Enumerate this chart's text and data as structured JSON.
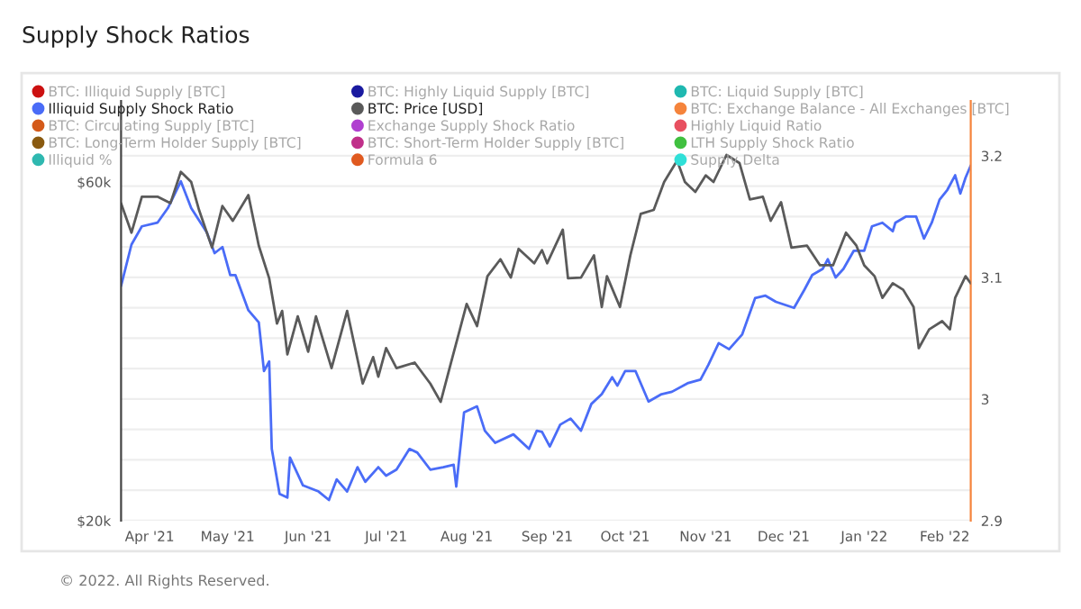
{
  "chart_data": {
    "type": "line",
    "title": "Supply Shock Ratios",
    "annotations": [
      "© 2022. All Rights Reserved."
    ],
    "xlim": [
      "2021-03-21",
      "2022-02-11"
    ],
    "xticks": [
      {
        "value": "2021-04-01",
        "label": "Apr '21"
      },
      {
        "value": "2021-05-01",
        "label": "May '21"
      },
      {
        "value": "2021-06-01",
        "label": "Jun '21"
      },
      {
        "value": "2021-07-01",
        "label": "Jul '21"
      },
      {
        "value": "2021-08-01",
        "label": "Aug '21"
      },
      {
        "value": "2021-09-01",
        "label": "Sep '21"
      },
      {
        "value": "2021-10-01",
        "label": "Oct '21"
      },
      {
        "value": "2021-11-01",
        "label": "Nov '21"
      },
      {
        "value": "2021-12-01",
        "label": "Dec '21"
      },
      {
        "value": "2022-01-01",
        "label": "Jan '22"
      },
      {
        "value": "2022-02-01",
        "label": "Feb '22"
      }
    ],
    "log": "y",
    "ylim": [
      20000,
      78000
    ],
    "yticks": [
      {
        "value": 20000,
        "label": "$20k"
      },
      {
        "value": 60000,
        "label": "$60k"
      }
    ],
    "y2lim": [
      2.9,
      3.245
    ],
    "y2ticks": [
      2.9,
      {
        "value": 2.925,
        "label": null
      },
      {
        "value": 2.95,
        "label": null
      },
      {
        "value": 2.975,
        "label": null
      },
      3,
      {
        "value": 3.025,
        "label": null
      },
      {
        "value": 3.05,
        "label": null
      },
      {
        "value": 3.075,
        "label": null
      },
      3.1,
      {
        "value": 3.125,
        "label": null
      },
      {
        "value": 3.15,
        "label": null
      },
      {
        "value": 3.175,
        "label": null
      },
      3.2
    ],
    "grid": "y2",
    "legend": "top",
    "series": [
      {
        "name": "BTC: Illiquid Supply [BTC]",
        "color": "#cc1111"
      },
      {
        "name": "Illiquid Supply Shock Ratio",
        "color": "#4a6cf7",
        "axis": "y2",
        "x": [
          "2021-03-21",
          "2021-03-25",
          "2021-03-29",
          "2021-04-04",
          "2021-04-08",
          "2021-04-13",
          "2021-04-17",
          "2021-04-23",
          "2021-04-26",
          "2021-04-29",
          "2021-05-02",
          "2021-05-04",
          "2021-05-09",
          "2021-05-13",
          "2021-05-15",
          "2021-05-17",
          "2021-05-18",
          "2021-05-21",
          "2021-05-24",
          "2021-05-25",
          "2021-05-30",
          "2021-06-05",
          "2021-06-09",
          "2021-06-12",
          "2021-06-16",
          "2021-06-20",
          "2021-06-23",
          "2021-06-28",
          "2021-07-01",
          "2021-07-05",
          "2021-07-10",
          "2021-07-13",
          "2021-07-18",
          "2021-07-23",
          "2021-07-27",
          "2021-07-28",
          "2021-07-31",
          "2021-08-05",
          "2021-08-08",
          "2021-08-12",
          "2021-08-19",
          "2021-08-25",
          "2021-08-28",
          "2021-08-30",
          "2021-09-02",
          "2021-09-06",
          "2021-09-10",
          "2021-09-14",
          "2021-09-18",
          "2021-09-22",
          "2021-09-26",
          "2021-09-28",
          "2021-10-01",
          "2021-10-05",
          "2021-10-10",
          "2021-10-15",
          "2021-10-19",
          "2021-10-25",
          "2021-10-30",
          "2021-11-02",
          "2021-11-06",
          "2021-11-10",
          "2021-11-15",
          "2021-11-20",
          "2021-11-24",
          "2021-11-28",
          "2021-12-05",
          "2021-12-09",
          "2021-12-12",
          "2021-12-16",
          "2021-12-18",
          "2021-12-21",
          "2021-12-24",
          "2021-12-28",
          "2022-01-01",
          "2022-01-04",
          "2022-01-08",
          "2022-01-12",
          "2022-01-13",
          "2022-01-17",
          "2022-01-21",
          "2022-01-24",
          "2022-01-27",
          "2022-01-30",
          "2022-02-02",
          "2022-02-05",
          "2022-02-07",
          "2022-02-09",
          "2022-02-11"
        ],
        "values": [
          3.093,
          3.127,
          3.142,
          3.145,
          3.157,
          3.179,
          3.157,
          3.137,
          3.12,
          3.125,
          3.102,
          3.102,
          3.073,
          3.063,
          3.023,
          3.031,
          2.959,
          2.922,
          2.919,
          2.952,
          2.929,
          2.924,
          2.917,
          2.934,
          2.924,
          2.944,
          2.932,
          2.944,
          2.937,
          2.942,
          2.959,
          2.956,
          2.942,
          2.944,
          2.946,
          2.928,
          2.989,
          2.994,
          2.974,
          2.964,
          2.971,
          2.959,
          2.974,
          2.973,
          2.961,
          2.979,
          2.984,
          2.974,
          2.996,
          3.004,
          3.018,
          3.011,
          3.023,
          3.023,
          2.998,
          3.004,
          3.006,
          3.013,
          3.016,
          3.028,
          3.046,
          3.041,
          3.053,
          3.083,
          3.085,
          3.08,
          3.075,
          3.09,
          3.102,
          3.107,
          3.115,
          3.1,
          3.107,
          3.122,
          3.122,
          3.142,
          3.145,
          3.138,
          3.145,
          3.15,
          3.15,
          3.132,
          3.145,
          3.164,
          3.172,
          3.184,
          3.169,
          3.182,
          3.192
        ]
      },
      {
        "name": "BTC: Circulating Supply [BTC]",
        "color": "#d45a1a"
      },
      {
        "name": "BTC: Long-Term Holder Supply [BTC]",
        "color": "#8a5a10"
      },
      {
        "name": "Illiquid %",
        "color": "#2fb8b0"
      },
      {
        "name": "BTC: Highly Liquid Supply [BTC]",
        "color": "#1a1aa0"
      },
      {
        "name": "BTC: Price [USD]",
        "color": "#5a5a5a",
        "x": [
          "2021-03-21",
          "2021-03-25",
          "2021-03-29",
          "2021-04-04",
          "2021-04-09",
          "2021-04-13",
          "2021-04-17",
          "2021-04-20",
          "2021-04-25",
          "2021-04-29",
          "2021-05-03",
          "2021-05-09",
          "2021-05-13",
          "2021-05-17",
          "2021-05-20",
          "2021-05-22",
          "2021-05-24",
          "2021-05-28",
          "2021-06-01",
          "2021-06-04",
          "2021-06-10",
          "2021-06-16",
          "2021-06-22",
          "2021-06-26",
          "2021-06-28",
          "2021-07-01",
          "2021-07-05",
          "2021-07-12",
          "2021-07-18",
          "2021-07-22",
          "2021-07-26",
          "2021-08-01",
          "2021-08-05",
          "2021-08-09",
          "2021-08-14",
          "2021-08-18",
          "2021-08-21",
          "2021-08-27",
          "2021-08-30",
          "2021-09-01",
          "2021-09-07",
          "2021-09-09",
          "2021-09-14",
          "2021-09-19",
          "2021-09-22",
          "2021-09-24",
          "2021-09-29",
          "2021-10-03",
          "2021-10-07",
          "2021-10-12",
          "2021-10-16",
          "2021-10-21",
          "2021-10-24",
          "2021-10-28",
          "2021-11-01",
          "2021-11-04",
          "2021-11-09",
          "2021-11-14",
          "2021-11-18",
          "2021-11-23",
          "2021-11-26",
          "2021-11-30",
          "2021-12-04",
          "2021-12-10",
          "2021-12-15",
          "2021-12-20",
          "2021-12-25",
          "2021-12-29",
          "2022-01-01",
          "2022-01-05",
          "2022-01-08",
          "2022-01-12",
          "2022-01-16",
          "2022-01-20",
          "2022-01-22",
          "2022-01-26",
          "2022-01-31",
          "2022-02-03",
          "2022-02-05",
          "2022-02-09",
          "2022-02-11"
        ],
        "values": [
          56000,
          50900,
          57200,
          57200,
          56000,
          62000,
          60000,
          54800,
          48500,
          55500,
          52900,
          57500,
          48800,
          43900,
          37900,
          39500,
          34300,
          38800,
          34600,
          38800,
          32800,
          39500,
          31200,
          34000,
          31900,
          35000,
          32800,
          33400,
          31200,
          29400,
          33400,
          40400,
          37600,
          44200,
          46700,
          44000,
          48300,
          46100,
          48100,
          46100,
          51400,
          43900,
          44000,
          47300,
          40000,
          44200,
          40000,
          47300,
          54100,
          54800,
          60000,
          64300,
          60000,
          58100,
          61300,
          60000,
          65500,
          63800,
          56700,
          57200,
          52900,
          56200,
          48500,
          48800,
          45800,
          45800,
          50900,
          48800,
          45800,
          44200,
          41200,
          43200,
          42300,
          40000,
          35000,
          37200,
          38200,
          37200,
          41200,
          44200,
          43200
        ]
      },
      {
        "name": "Exchange Supply Shock Ratio",
        "color": "#b040d0"
      },
      {
        "name": "BTC: Short-Term Holder Supply [BTC]",
        "color": "#c0308a"
      },
      {
        "name": "Formula 6",
        "color": "#e05a20"
      },
      {
        "name": "BTC: Liquid Supply [BTC]",
        "color": "#1fb8b0"
      },
      {
        "name": "BTC: Exchange Balance - All Exchanges [BTC]",
        "color": "#f5843c"
      },
      {
        "name": "Highly Liquid Ratio",
        "color": "#e85060"
      },
      {
        "name": "LTH Supply Shock Ratio",
        "color": "#40c040"
      },
      {
        "name": "Supply Delta",
        "color": "#30e0d8"
      }
    ]
  }
}
